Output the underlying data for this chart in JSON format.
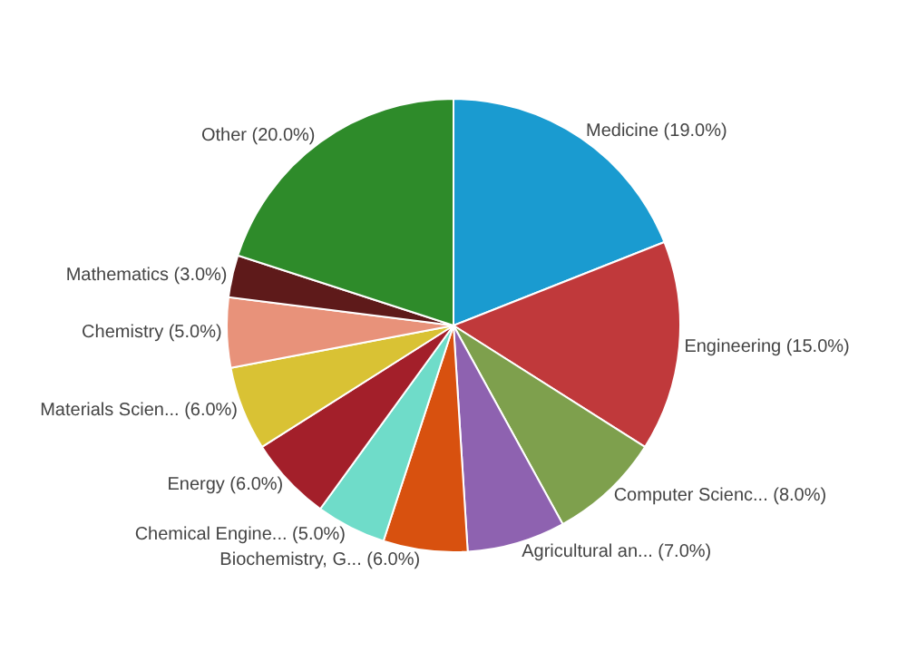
{
  "chart_data": {
    "type": "pie",
    "categories": [
      "Medicine (19.0%)",
      "Engineering (15.0%)",
      "Computer Scienc... (8.0%)",
      "Agricultural an... (7.0%)",
      "Biochemistry, G... (6.0%)",
      "Chemical Engine... (5.0%)",
      "Energy (6.0%)",
      "Materials Scien... (6.0%)",
      "Chemistry (5.0%)",
      "Mathematics (3.0%)",
      "Other (20.0%)"
    ],
    "values": [
      19,
      15,
      8,
      7,
      6,
      5,
      6,
      6,
      5,
      3,
      20
    ],
    "colors": [
      "#1a9bd0",
      "#c0393b",
      "#7ea04d",
      "#8e62b0",
      "#d8510f",
      "#6fdcc9",
      "#a31f2a",
      "#d9c234",
      "#e8927a",
      "#5e1a1a",
      "#2e8b2a"
    ],
    "legend": false
  }
}
